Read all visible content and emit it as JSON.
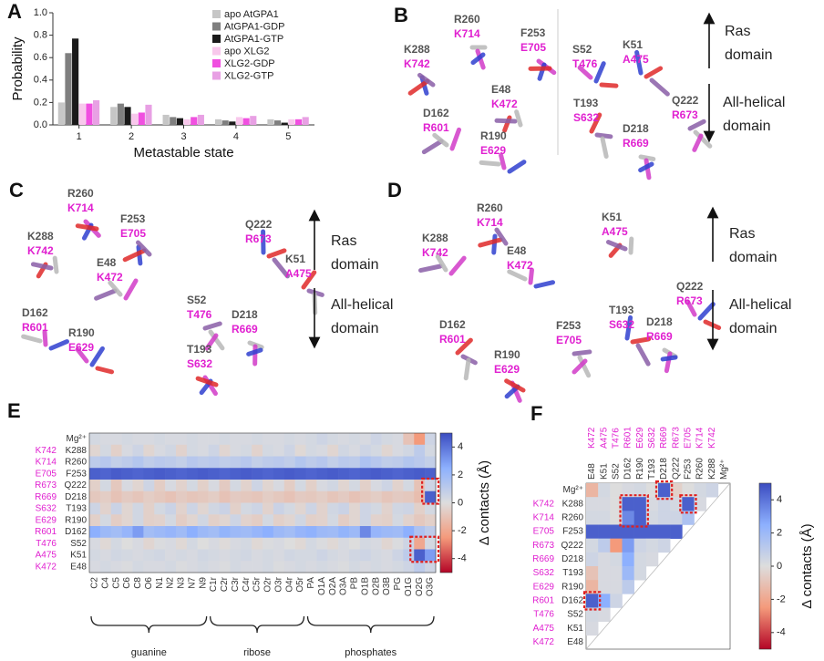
{
  "chart_data": [
    {
      "type": "bar",
      "panel": "A",
      "ylabel": "Probability",
      "xlabel": "Metastable state",
      "categories": [
        "1",
        "2",
        "3",
        "4",
        "5"
      ],
      "ylim": [
        0,
        1
      ],
      "yticks": [
        {
          "value": 0,
          "label": "0.0"
        },
        {
          "value": 0.2,
          "label": "0.2"
        },
        {
          "value": 0.4,
          "label": "0.4"
        },
        {
          "value": 0.6,
          "label": "0.6"
        },
        {
          "value": 0.8,
          "label": "0.8"
        },
        {
          "value": 1,
          "label": "1.0"
        }
      ],
      "legend": "upper right",
      "series": [
        {
          "name": "apo AtGPA1",
          "color": "#c6c6c6",
          "values": [
            0.2,
            0.16,
            0.09,
            0.05,
            0.05
          ]
        },
        {
          "name": "AtGPA1-GDP",
          "color": "#7f7f7f",
          "values": [
            0.64,
            0.19,
            0.07,
            0.04,
            0.04
          ]
        },
        {
          "name": "AtGPA1-GTP",
          "color": "#1a1a1a",
          "values": [
            0.77,
            0.16,
            0.06,
            0.03,
            0.02
          ]
        },
        {
          "name": "apo XLG2",
          "color": "#f8c8ec",
          "values": [
            0.19,
            0.1,
            0.05,
            0.07,
            0.05
          ]
        },
        {
          "name": "XLG2-GDP",
          "color": "#f050e0",
          "values": [
            0.19,
            0.11,
            0.07,
            0.06,
            0.05
          ]
        },
        {
          "name": "XLG2-GTP",
          "color": "#e8a0e4",
          "values": [
            0.22,
            0.18,
            0.09,
            0.08,
            0.07
          ]
        }
      ]
    },
    {
      "type": "heatmap",
      "panel": "E",
      "colorbar_label": "Δ contacts (Å)",
      "clim": [
        -5,
        5
      ],
      "cticks": [
        4,
        2,
        0,
        -2,
        -4
      ],
      "rows": [
        "Mg²⁺",
        "K288",
        "R260",
        "F253",
        "Q222",
        "D218",
        "T193",
        "R190",
        "D162",
        "S52",
        "K51",
        "E48"
      ],
      "rows_xlg2": [
        null,
        "K742",
        "K714",
        "E705",
        "R673",
        "R669",
        "S632",
        "E629",
        "R601",
        "T476",
        "A475",
        "K472"
      ],
      "columns": [
        "C2",
        "C4",
        "C5",
        "C6",
        "C8",
        "O6",
        "N1",
        "N2",
        "N3",
        "N7",
        "N9",
        "C1r",
        "C2r",
        "C3r",
        "C4r",
        "C5r",
        "O2r",
        "O3r",
        "O4r",
        "O5r",
        "PA",
        "O1A",
        "O2A",
        "O3A",
        "PB",
        "O1B",
        "O2B",
        "O3B",
        "PG",
        "O1G",
        "O2G",
        "O3G"
      ],
      "groups": [
        "guanine",
        "ribose",
        "phosphates"
      ],
      "values": [
        [
          0.3,
          0.2,
          0.2,
          0.3,
          0.2,
          0.2,
          0.3,
          0.2,
          0.2,
          0.3,
          0.2,
          0.2,
          0.3,
          0.2,
          0.2,
          0.3,
          0.2,
          0.2,
          0.3,
          0.2,
          0.3,
          0.5,
          0.3,
          0.2,
          0.3,
          0.2,
          0.5,
          0.3,
          0.2,
          -1,
          -2.5,
          0.5
        ],
        [
          -0.3,
          0.3,
          -0.5,
          0.2,
          0.5,
          -0.3,
          0.2,
          0.4,
          -0.4,
          0.3,
          0.2,
          0.5,
          -0.3,
          0.2,
          0.3,
          -0.4,
          0.3,
          0.2,
          0.5,
          -0.2,
          0.3,
          0.2,
          -0.3,
          0.4,
          0.2,
          0.5,
          0.3,
          -0.3,
          0.2,
          0.4,
          1,
          0.3
        ],
        [
          1,
          1.2,
          0.8,
          1,
          1.3,
          0.9,
          1.1,
          1,
          0.8,
          1.2,
          1,
          1.1,
          0.9,
          1,
          1.2,
          0.8,
          1,
          1.1,
          0.9,
          1.3,
          1,
          1.2,
          0.8,
          1.1,
          1,
          1.5,
          1.2,
          0.9,
          1,
          1.3,
          1.1,
          0.8
        ],
        [
          4.5,
          4.4,
          4.6,
          4.5,
          4.4,
          4.5,
          4.6,
          4.5,
          4.4,
          4.5,
          4.6,
          4.5,
          4.4,
          4.5,
          4.6,
          4.5,
          4.4,
          4.5,
          4.6,
          4.5,
          4.4,
          4.5,
          4.6,
          4.5,
          4.4,
          4.5,
          4.6,
          4.5,
          4.4,
          4.5,
          4.6,
          4.5
        ],
        [
          -0.5,
          0.3,
          -0.8,
          0.2,
          -0.3,
          0.5,
          -0.6,
          0.2,
          -0.4,
          0.3,
          -0.5,
          0.2,
          -0.7,
          0.3,
          -0.4,
          0.5,
          -0.3,
          0.2,
          -0.6,
          0.3,
          -0.5,
          0.2,
          0.4,
          -0.3,
          0.3,
          -0.5,
          0.2,
          0.5,
          -0.4,
          0.3,
          -1,
          0.5
        ],
        [
          -0.8,
          -0.6,
          -1,
          -0.7,
          -0.9,
          -0.6,
          -0.8,
          -1,
          -0.7,
          -0.9,
          -0.8,
          -0.6,
          -1,
          -0.7,
          -0.8,
          -0.9,
          -0.6,
          -0.8,
          -1,
          -0.7,
          -0.8,
          -0.6,
          -0.9,
          -0.7,
          -1,
          -0.8,
          -0.6,
          -0.9,
          -0.7,
          -0.8,
          -1.2,
          4.5
        ],
        [
          0.5,
          -0.4,
          0.6,
          -0.3,
          0.4,
          -0.5,
          0.3,
          0.6,
          -0.4,
          0.5,
          -0.3,
          0.4,
          0.6,
          -0.5,
          0.3,
          0.5,
          -0.4,
          0.6,
          0.3,
          -0.3,
          0.5,
          -0.4,
          0.4,
          0.6,
          -0.3,
          0.5,
          0.3,
          -0.4,
          0.4,
          0.5,
          -0.5,
          0.3
        ],
        [
          -0.5,
          0.3,
          -0.6,
          -0.3,
          0.4,
          -0.5,
          -0.4,
          0.3,
          -0.6,
          -0.3,
          0.4,
          -0.5,
          -0.3,
          0.5,
          -0.4,
          -0.6,
          0.3,
          -0.5,
          -0.3,
          0.4,
          -0.5,
          -0.4,
          0.3,
          -0.6,
          -0.3,
          0.5,
          -0.4,
          -0.5,
          0.3,
          -0.4,
          -0.8,
          -0.5
        ],
        [
          2.5,
          2,
          1.8,
          2.2,
          3,
          1.8,
          2,
          2.2,
          1.9,
          2.5,
          2,
          1.8,
          2.3,
          2,
          1.9,
          2.2,
          2.5,
          2,
          1.8,
          2.2,
          2.4,
          2,
          1.9,
          2.3,
          2,
          3.5,
          2.2,
          2,
          1.9,
          2.5,
          1.5,
          1
        ],
        [
          0.2,
          -0.2,
          0.3,
          0,
          0.2,
          -0.3,
          0.1,
          0.2,
          -0.2,
          0.3,
          0,
          0.2,
          -0.1,
          0.2,
          0.3,
          -0.2,
          0.1,
          0.2,
          0,
          -0.2,
          0.3,
          0.1,
          -0.2,
          0.2,
          0,
          0.3,
          0.2,
          -0.3,
          0.1,
          0.5,
          -2,
          0.3
        ],
        [
          0.3,
          0.2,
          0.4,
          0.3,
          0.2,
          0.3,
          0.4,
          0.2,
          0.3,
          0.2,
          0.4,
          0.3,
          0.2,
          0.3,
          0.4,
          0.2,
          0.3,
          0.2,
          0.4,
          0.3,
          0.3,
          0.5,
          0.3,
          0.2,
          0.4,
          0.5,
          0.3,
          0.2,
          0.5,
          1,
          4.5,
          3
        ],
        [
          0.2,
          0.3,
          0.2,
          0.1,
          0.3,
          0.2,
          0.2,
          0.3,
          0.1,
          0.2,
          0.3,
          0.2,
          0.1,
          0.3,
          0.2,
          0.2,
          0.3,
          0.1,
          0.2,
          0.3,
          0.2,
          0.3,
          0.2,
          0.1,
          0.3,
          0.2,
          0.3,
          0.2,
          0.3,
          0.5,
          1,
          0.5
        ]
      ]
    },
    {
      "type": "triangle-heatmap",
      "panel": "F",
      "colorbar_label": "Δ contacts (Å)",
      "clim": [
        -5,
        5
      ],
      "cticks": [
        4,
        2,
        0,
        -2,
        -4
      ],
      "rows": [
        "Mg²⁺",
        "K288",
        "R260",
        "F253",
        "Q222",
        "D218",
        "T193",
        "R190",
        "D162",
        "S52",
        "K51",
        "E48"
      ],
      "rows_xlg2": [
        null,
        "K742",
        "K714",
        "E705",
        "R673",
        "R669",
        "S632",
        "E629",
        "R601",
        "T476",
        "A475",
        "K472"
      ],
      "columns": [
        "E48",
        "K51",
        "S52",
        "D162",
        "R190",
        "T193",
        "D218",
        "Q222",
        "F253",
        "R260",
        "K288",
        "Mg²⁺"
      ],
      "columns_xlg2": [
        "K472",
        "A475",
        "T476",
        "R601",
        "E629",
        "S632",
        "R669",
        "R673",
        "E705",
        "K714",
        "K742",
        null
      ],
      "values": [
        [
          -1.5,
          0.3,
          0,
          0.2,
          0.3,
          0,
          4.5,
          -0.5,
          0,
          0.3,
          0.5
        ],
        [
          0.2,
          0.2,
          0,
          4.5,
          4.5,
          0.2,
          0.5,
          0.3,
          4.5,
          0.2
        ],
        [
          0.3,
          0.3,
          0,
          3.5,
          4.5,
          0.3,
          0.5,
          0.5,
          1.5
        ],
        [
          4.5,
          4.5,
          4.5,
          4.5,
          4.5,
          4.5,
          4.5,
          4.5
        ],
        [
          0.3,
          1,
          -2.5,
          3,
          0.5,
          0.3,
          0.5
        ],
        [
          0.5,
          0.2,
          0.3,
          2.5,
          0.3,
          0.2
        ],
        [
          -1,
          0.2,
          0.2,
          2,
          0.3
        ],
        [
          -1.5,
          0.2,
          0.2,
          1
        ],
        [
          4.5,
          2.5,
          0.5
        ],
        [
          0.3,
          0.2
        ],
        [
          0.2
        ],
        []
      ]
    }
  ],
  "structures": [
    {
      "panel": "B",
      "residues": [
        [
          "R260",
          "K714"
        ],
        [
          "F253",
          "E705"
        ],
        [
          "K288",
          "K742"
        ],
        [
          "E48",
          "K472"
        ],
        [
          "D162",
          "R601"
        ],
        [
          "R190",
          "E629"
        ],
        [
          "S52",
          "T476"
        ],
        [
          "K51",
          "A475"
        ],
        [
          "T193",
          "S632"
        ],
        [
          "Q222",
          "R673"
        ],
        [
          "D218",
          "R669"
        ]
      ],
      "domains": [
        [
          "Ras",
          "domain"
        ],
        [
          "All-helical",
          "domain"
        ]
      ]
    },
    {
      "panel": "C",
      "residues": [
        [
          "R260",
          "K714"
        ],
        [
          "F253",
          "E705"
        ],
        [
          "K288",
          "K742"
        ],
        [
          "E48",
          "K472"
        ],
        [
          "D162",
          "R601"
        ],
        [
          "R190",
          "E629"
        ],
        [
          "Q222",
          "R673"
        ],
        [
          "K51",
          "A475"
        ],
        [
          "S52",
          "T476"
        ],
        [
          "D218",
          "R669"
        ],
        [
          "T193",
          "S632"
        ]
      ],
      "domains": [
        [
          "Ras",
          "domain"
        ],
        [
          "All-helical",
          "domain"
        ]
      ]
    },
    {
      "panel": "D",
      "residues": [
        [
          "R260",
          "K714"
        ],
        [
          "K51",
          "A475"
        ],
        [
          "K288",
          "K742"
        ],
        [
          "E48",
          "K472"
        ],
        [
          "Q222",
          "R673"
        ],
        [
          "T193",
          "S632"
        ],
        [
          "D162",
          "R601"
        ],
        [
          "F253",
          "E705"
        ],
        [
          "D218",
          "R669"
        ],
        [
          "R190",
          "E629"
        ]
      ],
      "domains": [
        [
          "Ras",
          "domain"
        ],
        [
          "All-helical",
          "domain"
        ]
      ]
    }
  ]
}
